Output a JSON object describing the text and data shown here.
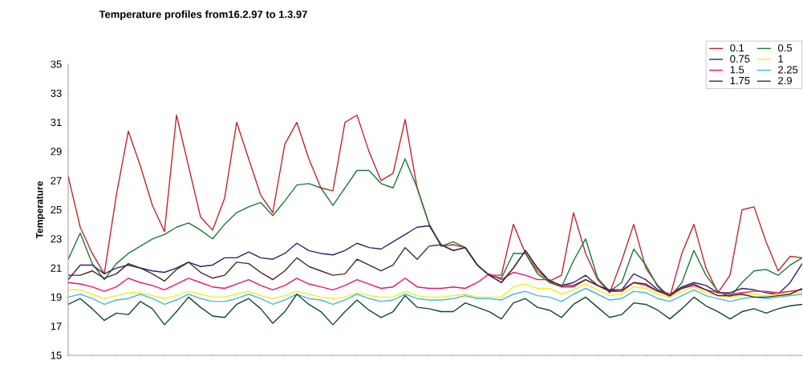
{
  "chart_data": {
    "type": "line",
    "title": "Temperature profiles from16.2.97 to 1.3.97",
    "ylabel": "Temperature",
    "categories": [
      null,
      null,
      null,
      null,
      null,
      null,
      null,
      null,
      null,
      null,
      null,
      null,
      null,
      null,
      null,
      null,
      null,
      null,
      null,
      null,
      null,
      null,
      null,
      null,
      null,
      null,
      null,
      null,
      null,
      null,
      null,
      null,
      null,
      null,
      null,
      null,
      null,
      null,
      null,
      null,
      null,
      null,
      null,
      null,
      null,
      null,
      null,
      null,
      null,
      null,
      null,
      null,
      null,
      null,
      null,
      null,
      null,
      null,
      null,
      null,
      null,
      null
    ],
    "ylim": [
      15,
      35
    ],
    "yticks": [
      15,
      17,
      19,
      21,
      23,
      25,
      27,
      29,
      31,
      33,
      35
    ],
    "legend": "top right",
    "grid": false,
    "series": [
      {
        "name": "0.1",
        "color": "#c0282d",
        "values": [
          27.3,
          23.8,
          22.0,
          20.6,
          26.0,
          30.4,
          28.0,
          25.3,
          23.5,
          31.5,
          28.0,
          24.5,
          23.6,
          25.8,
          31.0,
          28.5,
          26.0,
          24.8,
          29.5,
          31.0,
          28.5,
          26.5,
          26.3,
          31.0,
          31.5,
          29.0,
          27.0,
          27.5,
          31.2,
          26.5,
          24.0,
          22.5,
          22.6,
          22.4,
          21.2,
          20.5,
          20.5,
          24.0,
          22.0,
          20.8,
          20.1,
          20.5,
          24.8,
          22.0,
          20.2,
          19.3,
          21.5,
          24.0,
          21.0,
          19.8,
          19.0,
          22.0,
          24.0,
          21.0,
          19.3,
          20.5,
          25.0,
          25.2,
          22.8,
          20.8,
          21.8,
          21.7
        ]
      },
      {
        "name": "0.5",
        "color": "#1a7a3a",
        "values": [
          21.6,
          23.4,
          21.3,
          20.2,
          21.3,
          22.0,
          22.5,
          23.0,
          23.3,
          23.8,
          24.1,
          23.6,
          23.0,
          24.0,
          24.8,
          25.2,
          25.5,
          24.6,
          25.6,
          26.7,
          26.8,
          26.5,
          25.3,
          26.5,
          27.7,
          27.7,
          26.8,
          26.5,
          28.5,
          26.5,
          24.0,
          22.5,
          22.8,
          22.4,
          21.2,
          20.5,
          20.3,
          22.0,
          22.0,
          20.6,
          20.0,
          19.7,
          21.5,
          23.0,
          20.3,
          19.4,
          20.0,
          22.3,
          21.2,
          19.7,
          19.0,
          20.0,
          22.2,
          20.5,
          19.4,
          19.0,
          20.0,
          20.8,
          20.9,
          20.5,
          21.2,
          21.7
        ]
      },
      {
        "name": "0.75",
        "color": "#2e2370",
        "values": [
          20.2,
          21.2,
          21.2,
          20.6,
          21.0,
          21.2,
          21.0,
          20.8,
          20.7,
          21.0,
          21.4,
          21.1,
          21.2,
          21.7,
          21.7,
          22.1,
          21.7,
          21.6,
          22.0,
          22.7,
          22.2,
          22.0,
          21.9,
          22.2,
          22.7,
          22.4,
          22.3,
          22.8,
          23.3,
          23.8,
          23.9,
          22.6,
          22.2,
          22.4,
          21.2,
          20.5,
          20.0,
          21.0,
          22.2,
          21.0,
          20.1,
          19.8,
          20.0,
          20.5,
          19.8,
          19.5,
          19.5,
          20.6,
          20.2,
          19.5,
          19.2,
          19.7,
          20.0,
          19.8,
          19.3,
          19.3,
          19.6,
          19.5,
          19.3,
          19.2,
          20.0,
          21.3
        ]
      },
      {
        "name": "1",
        "color": "#eeee22",
        "values": [
          19.5,
          19.5,
          19.2,
          18.9,
          19.1,
          19.3,
          19.3,
          19.1,
          18.9,
          19.1,
          19.4,
          19.2,
          19.0,
          19.0,
          19.2,
          19.4,
          19.1,
          18.9,
          19.1,
          19.4,
          19.2,
          19.0,
          18.9,
          19.0,
          19.3,
          19.1,
          19.0,
          19.0,
          19.4,
          19.1,
          19.0,
          19.0,
          19.1,
          19.2,
          19.0,
          19.0,
          19.0,
          19.7,
          19.9,
          19.6,
          19.6,
          19.2,
          19.5,
          19.9,
          19.5,
          19.1,
          19.2,
          19.7,
          19.6,
          19.2,
          19.0,
          19.4,
          19.7,
          19.3,
          19.1,
          19.0,
          19.1,
          19.2,
          19.1,
          19.2,
          19.3,
          19.3
        ]
      },
      {
        "name": "1.5",
        "color": "#e8186a",
        "values": [
          20.0,
          19.9,
          19.7,
          19.4,
          19.7,
          20.3,
          20.0,
          19.8,
          19.5,
          19.9,
          20.3,
          20.0,
          19.7,
          19.6,
          19.9,
          20.2,
          19.8,
          19.5,
          19.8,
          20.3,
          19.9,
          19.7,
          19.5,
          19.8,
          20.2,
          19.9,
          19.6,
          19.7,
          20.3,
          19.7,
          19.6,
          19.6,
          19.7,
          19.6,
          20.0,
          20.6,
          20.2,
          20.7,
          20.5,
          20.2,
          20.2,
          19.7,
          19.7,
          20.2,
          19.8,
          19.4,
          19.5,
          20.0,
          19.8,
          19.4,
          19.2,
          19.6,
          19.8,
          19.5,
          19.3,
          19.2,
          19.3,
          19.4,
          19.4,
          19.3,
          19.4,
          19.5
        ]
      },
      {
        "name": "2.25",
        "color": "#49b8dc",
        "values": [
          19.0,
          19.2,
          18.9,
          18.5,
          18.8,
          18.9,
          19.2,
          18.9,
          18.5,
          18.8,
          19.2,
          18.9,
          18.7,
          18.7,
          18.9,
          19.2,
          18.9,
          18.5,
          18.8,
          19.2,
          18.9,
          18.8,
          18.5,
          18.8,
          19.2,
          18.9,
          18.7,
          18.8,
          19.2,
          18.9,
          18.8,
          18.8,
          18.9,
          19.1,
          18.9,
          18.9,
          18.8,
          19.2,
          19.4,
          19.1,
          19.0,
          18.7,
          19.2,
          19.6,
          19.2,
          18.8,
          18.9,
          19.4,
          19.3,
          18.9,
          18.7,
          19.1,
          19.5,
          19.1,
          18.9,
          18.7,
          18.9,
          19.0,
          18.9,
          19.0,
          19.1,
          19.2
        ]
      },
      {
        "name": "1.75",
        "color": "#4a2a20",
        "values": [
          20.5,
          20.5,
          20.8,
          20.3,
          20.6,
          21.3,
          21.0,
          20.6,
          20.1,
          20.9,
          21.4,
          20.7,
          20.3,
          20.5,
          21.4,
          21.3,
          20.7,
          20.2,
          20.8,
          21.7,
          21.1,
          20.8,
          20.5,
          20.6,
          21.6,
          21.2,
          20.8,
          21.2,
          22.4,
          21.6,
          22.5,
          22.6,
          22.2,
          22.4,
          21.2,
          20.5,
          20.0,
          21.0,
          22.2,
          21.0,
          20.1,
          19.8,
          19.8,
          20.2,
          19.8,
          19.4,
          19.4,
          20.0,
          19.9,
          19.4,
          19.1,
          19.6,
          19.9,
          19.5,
          19.1,
          19.1,
          19.2,
          19.0,
          19.0,
          19.1,
          19.2,
          19.6
        ]
      },
      {
        "name": "2.9",
        "color": "#0f4a30",
        "values": [
          18.5,
          18.9,
          18.2,
          17.4,
          17.9,
          17.8,
          18.7,
          18.2,
          17.1,
          18.0,
          19.0,
          18.3,
          17.7,
          17.6,
          18.5,
          18.9,
          18.2,
          17.2,
          18.0,
          19.2,
          18.5,
          18.0,
          17.1,
          18.0,
          18.8,
          18.1,
          17.6,
          18.0,
          19.1,
          18.3,
          18.2,
          18.0,
          18.0,
          18.6,
          18.3,
          18.0,
          17.5,
          18.6,
          18.9,
          18.3,
          18.1,
          17.6,
          18.5,
          19.0,
          18.3,
          17.6,
          17.8,
          18.6,
          18.5,
          18.1,
          17.5,
          18.2,
          19.0,
          18.4,
          18.0,
          17.5,
          18.0,
          18.2,
          17.9,
          18.2,
          18.4,
          18.5
        ]
      }
    ]
  }
}
